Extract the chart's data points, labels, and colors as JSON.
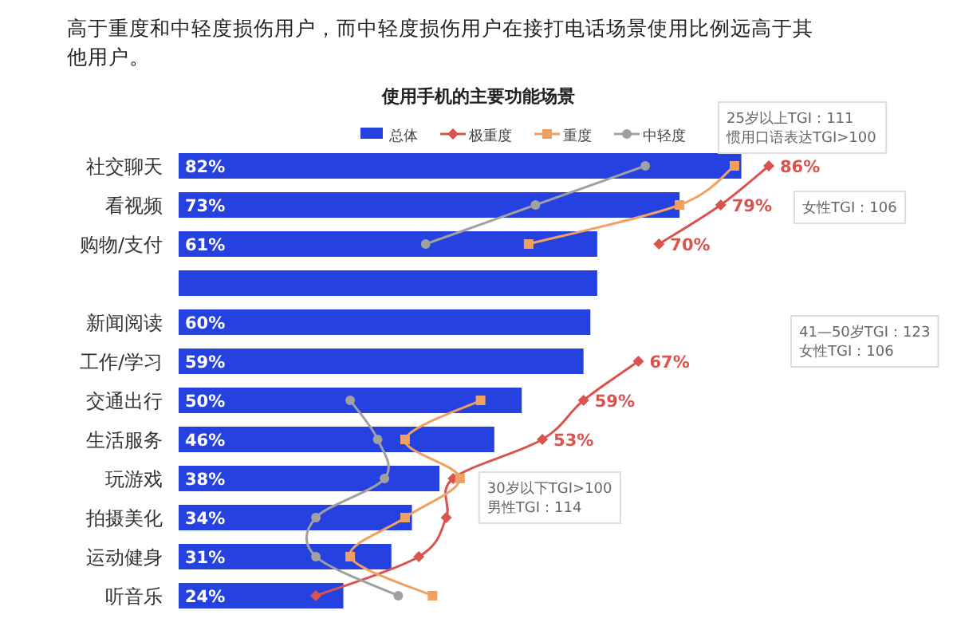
{
  "chart_data": {
    "type": "bar",
    "orientation": "horizontal",
    "title": "使用手机的主要功能场景",
    "categories": [
      "社交聊天",
      "看视频",
      "购物/支付",
      null,
      "新闻阅读",
      "工作/学习",
      "交通出行",
      "生活服务",
      "玩游戏",
      "拍摄美化",
      "运动健身",
      "听音乐"
    ],
    "legend": "top",
    "series": [
      {
        "name": "总体",
        "color": "#2541e0",
        "values": [
          82,
          73,
          61,
          61,
          60,
          59,
          50,
          46,
          38,
          34,
          31,
          24
        ],
        "value_labels": [
          "82%",
          "73%",
          "61%",
          null,
          "60%",
          "59%",
          "50%",
          "46%",
          "38%",
          "34%",
          "31%",
          "24%"
        ]
      },
      {
        "name": "极重度",
        "type": "line",
        "color": "#d9534f",
        "marker": "diamond",
        "values": [
          86,
          79,
          70,
          null,
          null,
          67,
          59,
          53,
          40,
          39,
          35,
          20
        ],
        "value_labels": [
          "86%",
          "79%",
          "70%",
          null,
          null,
          "67%",
          "59%",
          "53%",
          null,
          null,
          null,
          null
        ]
      },
      {
        "name": "重度",
        "type": "line",
        "color": "#f0a060",
        "marker": "square",
        "values": [
          81,
          73,
          51,
          null,
          null,
          null,
          44,
          33,
          41,
          33,
          25,
          37
        ]
      },
      {
        "name": "中轻度",
        "type": "line",
        "color": "#a0a0a0",
        "marker": "circle",
        "values": [
          68,
          52,
          36,
          null,
          null,
          null,
          25,
          29,
          30,
          20,
          20,
          32
        ]
      }
    ],
    "annotations": [
      "高于重度和中轻度损伤用户，而中轻度损伤用户在接打电话场景使用比例远高于其他用户。",
      {
        "text": "25岁以上TGI：111\n惯用口语表达TGI>100",
        "x": 81,
        "y": "社交聊天"
      },
      "女性TGI：106",
      "41—50岁TGI：123\n女性TGI：106",
      {
        "text": "30岁以下TGI>100\n男性TGI：114",
        "x": 41,
        "y": "玩游戏"
      }
    ]
  }
}
